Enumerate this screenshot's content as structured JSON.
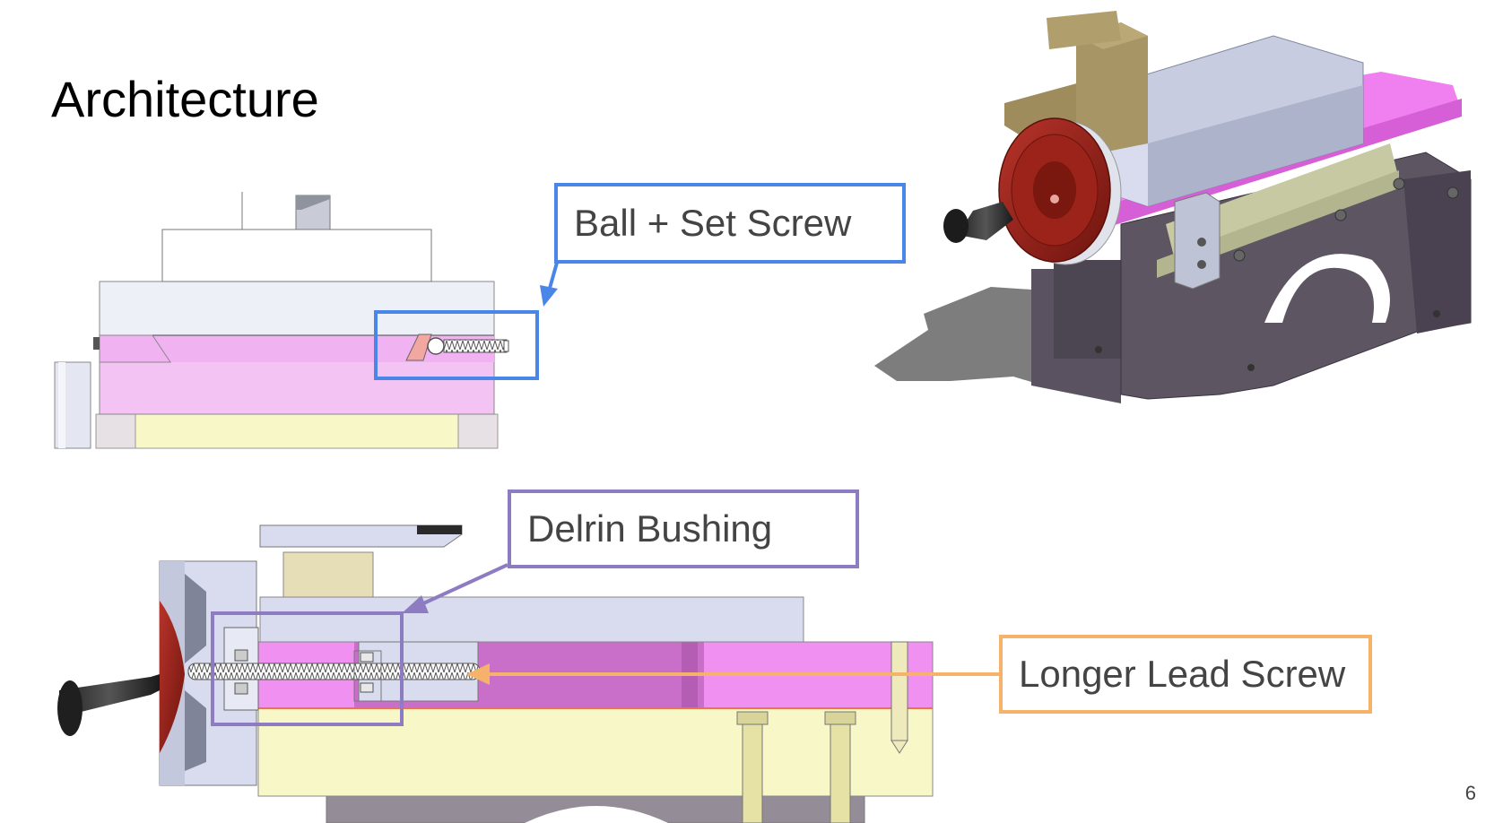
{
  "slide": {
    "title": "Architecture",
    "page_number": "6"
  },
  "callouts": {
    "ball_set_screw": {
      "label": "Ball + Set Screw",
      "color": "#4A86E8"
    },
    "delrin_bushing": {
      "label": "Delrin Bushing",
      "color": "#8E7CC3"
    },
    "longer_lead_screw": {
      "label": "Longer Lead Screw",
      "color": "#F6B26B"
    }
  },
  "palette": {
    "pink": "#F08CF0",
    "magenta": "#C96EC9",
    "light_yellow": "#F7F7C8",
    "lavender_gray": "#D8DCEE",
    "tan": "#D8CFA8",
    "dark_red": "#8A1E14",
    "dark_purple_gray": "#5E5563"
  }
}
